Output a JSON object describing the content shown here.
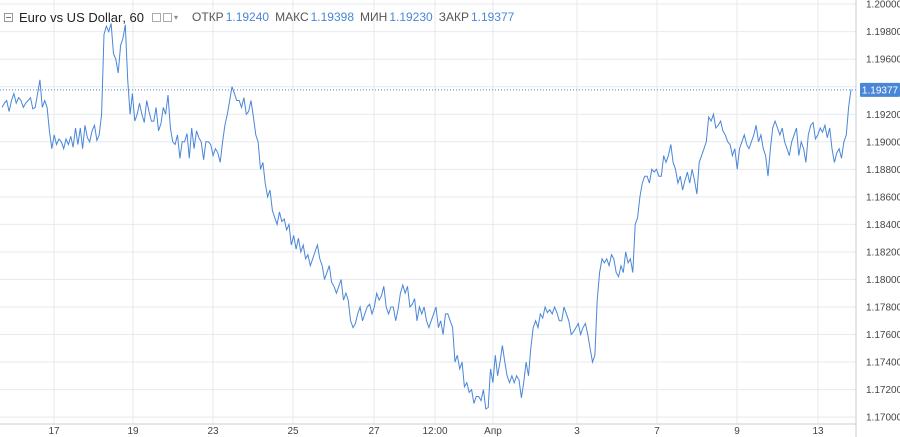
{
  "legend": {
    "symbol": "Euro vs US Dollar",
    "interval": "60",
    "labels": {
      "open": "ОТКР",
      "high": "МАКС",
      "low": "МИН",
      "close": "ЗАКР"
    },
    "values": {
      "open": "1.19240",
      "high": "1.19398",
      "low": "1.19230",
      "close": "1.19377"
    }
  },
  "icons": {
    "collapse": "collapse-icon",
    "settings": "settings-icon",
    "close": "close-icon",
    "menu": "chevron-down-icon"
  },
  "colors": {
    "line": "#4a86d8",
    "grid": "#e6e9ee",
    "axis_text": "#444444",
    "price_label_bg": "#4a86d8",
    "price_label_text": "#ffffff"
  },
  "chart_data": {
    "type": "line",
    "series": [
      {
        "values": [
          1.1925,
          1.1928,
          1.193,
          1.1922,
          1.193,
          1.1935,
          1.1928,
          1.1932,
          1.193,
          1.1925,
          1.1928,
          1.193,
          1.1932,
          1.1924,
          1.1925,
          1.1935,
          1.1945,
          1.1925,
          1.193,
          1.1925,
          1.1908,
          1.1895,
          1.1905,
          1.1898,
          1.1902,
          1.19,
          1.1895,
          1.1902,
          1.1898,
          1.1904,
          1.1896,
          1.191,
          1.1898,
          1.191,
          1.1895,
          1.1912,
          1.1903,
          1.19,
          1.1908,
          1.1912,
          1.1901,
          1.1905,
          1.192,
          1.1978,
          1.1984,
          1.198,
          1.1986,
          1.1964,
          1.196,
          1.195,
          1.197,
          1.1975,
          1.1985,
          1.1945,
          1.192,
          1.1935,
          1.1915,
          1.192,
          1.1928,
          1.192,
          1.1914,
          1.193,
          1.1922,
          1.1915,
          1.1915,
          1.1925,
          1.1908,
          1.1913,
          1.1925,
          1.192,
          1.1934,
          1.191,
          1.19,
          1.1898,
          1.1905,
          1.1888,
          1.19,
          1.19,
          1.1906,
          1.1888,
          1.191,
          1.1895,
          1.1908,
          1.1903,
          1.19,
          1.1887,
          1.19,
          1.19,
          1.1898,
          1.189,
          1.1895,
          1.1892,
          1.1885,
          1.19,
          1.1912,
          1.192,
          1.193,
          1.194,
          1.1935,
          1.193,
          1.193,
          1.1925,
          1.1932,
          1.192,
          1.1922,
          1.193,
          1.1918,
          1.1905,
          1.19,
          1.188,
          1.1885,
          1.187,
          1.186,
          1.1865,
          1.185,
          1.1845,
          1.184,
          1.1849,
          1.1842,
          1.1844,
          1.1836,
          1.184,
          1.1825,
          1.1832,
          1.1822,
          1.183,
          1.182,
          1.1825,
          1.1815,
          1.1818,
          1.181,
          1.1815,
          1.182,
          1.1825,
          1.1815,
          1.181,
          1.18,
          1.1805,
          1.181,
          1.1798,
          1.1795,
          1.179,
          1.1795,
          1.18,
          1.1785,
          1.179,
          1.1785,
          1.177,
          1.1765,
          1.1768,
          1.1775,
          1.178,
          1.177,
          1.1775,
          1.178,
          1.1782,
          1.1775,
          1.178,
          1.179,
          1.1785,
          1.1788,
          1.1795,
          1.178,
          1.1775,
          1.178,
          1.178,
          1.177,
          1.1778,
          1.179,
          1.1796,
          1.179,
          1.1795,
          1.178,
          1.1782,
          1.1786,
          1.177,
          1.178,
          1.1775,
          1.178,
          1.177,
          1.1765,
          1.177,
          1.1775,
          1.178,
          1.1765,
          1.177,
          1.176,
          1.1775,
          1.1775,
          1.177,
          1.1765,
          1.174,
          1.1745,
          1.1735,
          1.174,
          1.1722,
          1.1725,
          1.1718,
          1.172,
          1.171,
          1.1715,
          1.1715,
          1.1712,
          1.172,
          1.1706,
          1.1707,
          1.1735,
          1.1725,
          1.1745,
          1.173,
          1.174,
          1.1752,
          1.174,
          1.173,
          1.1725,
          1.173,
          1.1725,
          1.173,
          1.1727,
          1.1714,
          1.1725,
          1.174,
          1.173,
          1.175,
          1.1765,
          1.177,
          1.1765,
          1.1775,
          1.1772,
          1.178,
          1.1776,
          1.1778,
          1.1775,
          1.178,
          1.1776,
          1.177,
          1.177,
          1.178,
          1.1775,
          1.177,
          1.176,
          1.1762,
          1.1765,
          1.1768,
          1.176,
          1.1765,
          1.1768,
          1.176,
          1.175,
          1.174,
          1.1745,
          1.1785,
          1.1805,
          1.1815,
          1.1812,
          1.1815,
          1.181,
          1.1818,
          1.1815,
          1.1805,
          1.1802,
          1.181,
          1.1805,
          1.182,
          1.1812,
          1.1815,
          1.1805,
          1.184,
          1.1845,
          1.186,
          1.187,
          1.1875,
          1.1875,
          1.187,
          1.188,
          1.1878,
          1.188,
          1.1875,
          1.1875,
          1.189,
          1.1885,
          1.189,
          1.1898,
          1.1885,
          1.188,
          1.187,
          1.1875,
          1.1865,
          1.1872,
          1.1878,
          1.187,
          1.188,
          1.1872,
          1.1862,
          1.1885,
          1.189,
          1.1895,
          1.19,
          1.1918,
          1.1915,
          1.192,
          1.191,
          1.1912,
          1.1915,
          1.1908,
          1.1905,
          1.19,
          1.1898,
          1.189,
          1.1895,
          1.188,
          1.1895,
          1.19,
          1.1905,
          1.1898,
          1.1895,
          1.19,
          1.1905,
          1.1912,
          1.19,
          1.1905,
          1.1895,
          1.189,
          1.1875,
          1.1895,
          1.191,
          1.1915,
          1.191,
          1.1905,
          1.191,
          1.19,
          1.1895,
          1.189,
          1.19,
          1.1905,
          1.191,
          1.189,
          1.19,
          1.1895,
          1.1885,
          1.1905,
          1.1912,
          1.1914,
          1.1902,
          1.1905,
          1.191,
          1.1907,
          1.1912,
          1.1903,
          1.191,
          1.1895,
          1.1885,
          1.1892,
          1.1895,
          1.1888,
          1.19,
          1.1905,
          1.1925,
          1.1938
        ]
      }
    ],
    "current_value": "1.19377",
    "y_tick_labels": [
      "1.20000",
      "1.19800",
      "1.19600",
      "1.19400",
      "1.19200",
      "1.19000",
      "1.18800",
      "1.18600",
      "1.18400",
      "1.18200",
      "1.18000",
      "1.17800",
      "1.17600",
      "1.17400",
      "1.17200",
      "1.17000"
    ],
    "x_tick_labels": [
      "17",
      "19",
      "23",
      "25",
      "27",
      "12:00",
      "Апр",
      "3",
      "7",
      "9",
      "13"
    ],
    "ylim": [
      1.1695,
      1.2003
    ],
    "grid": true
  }
}
